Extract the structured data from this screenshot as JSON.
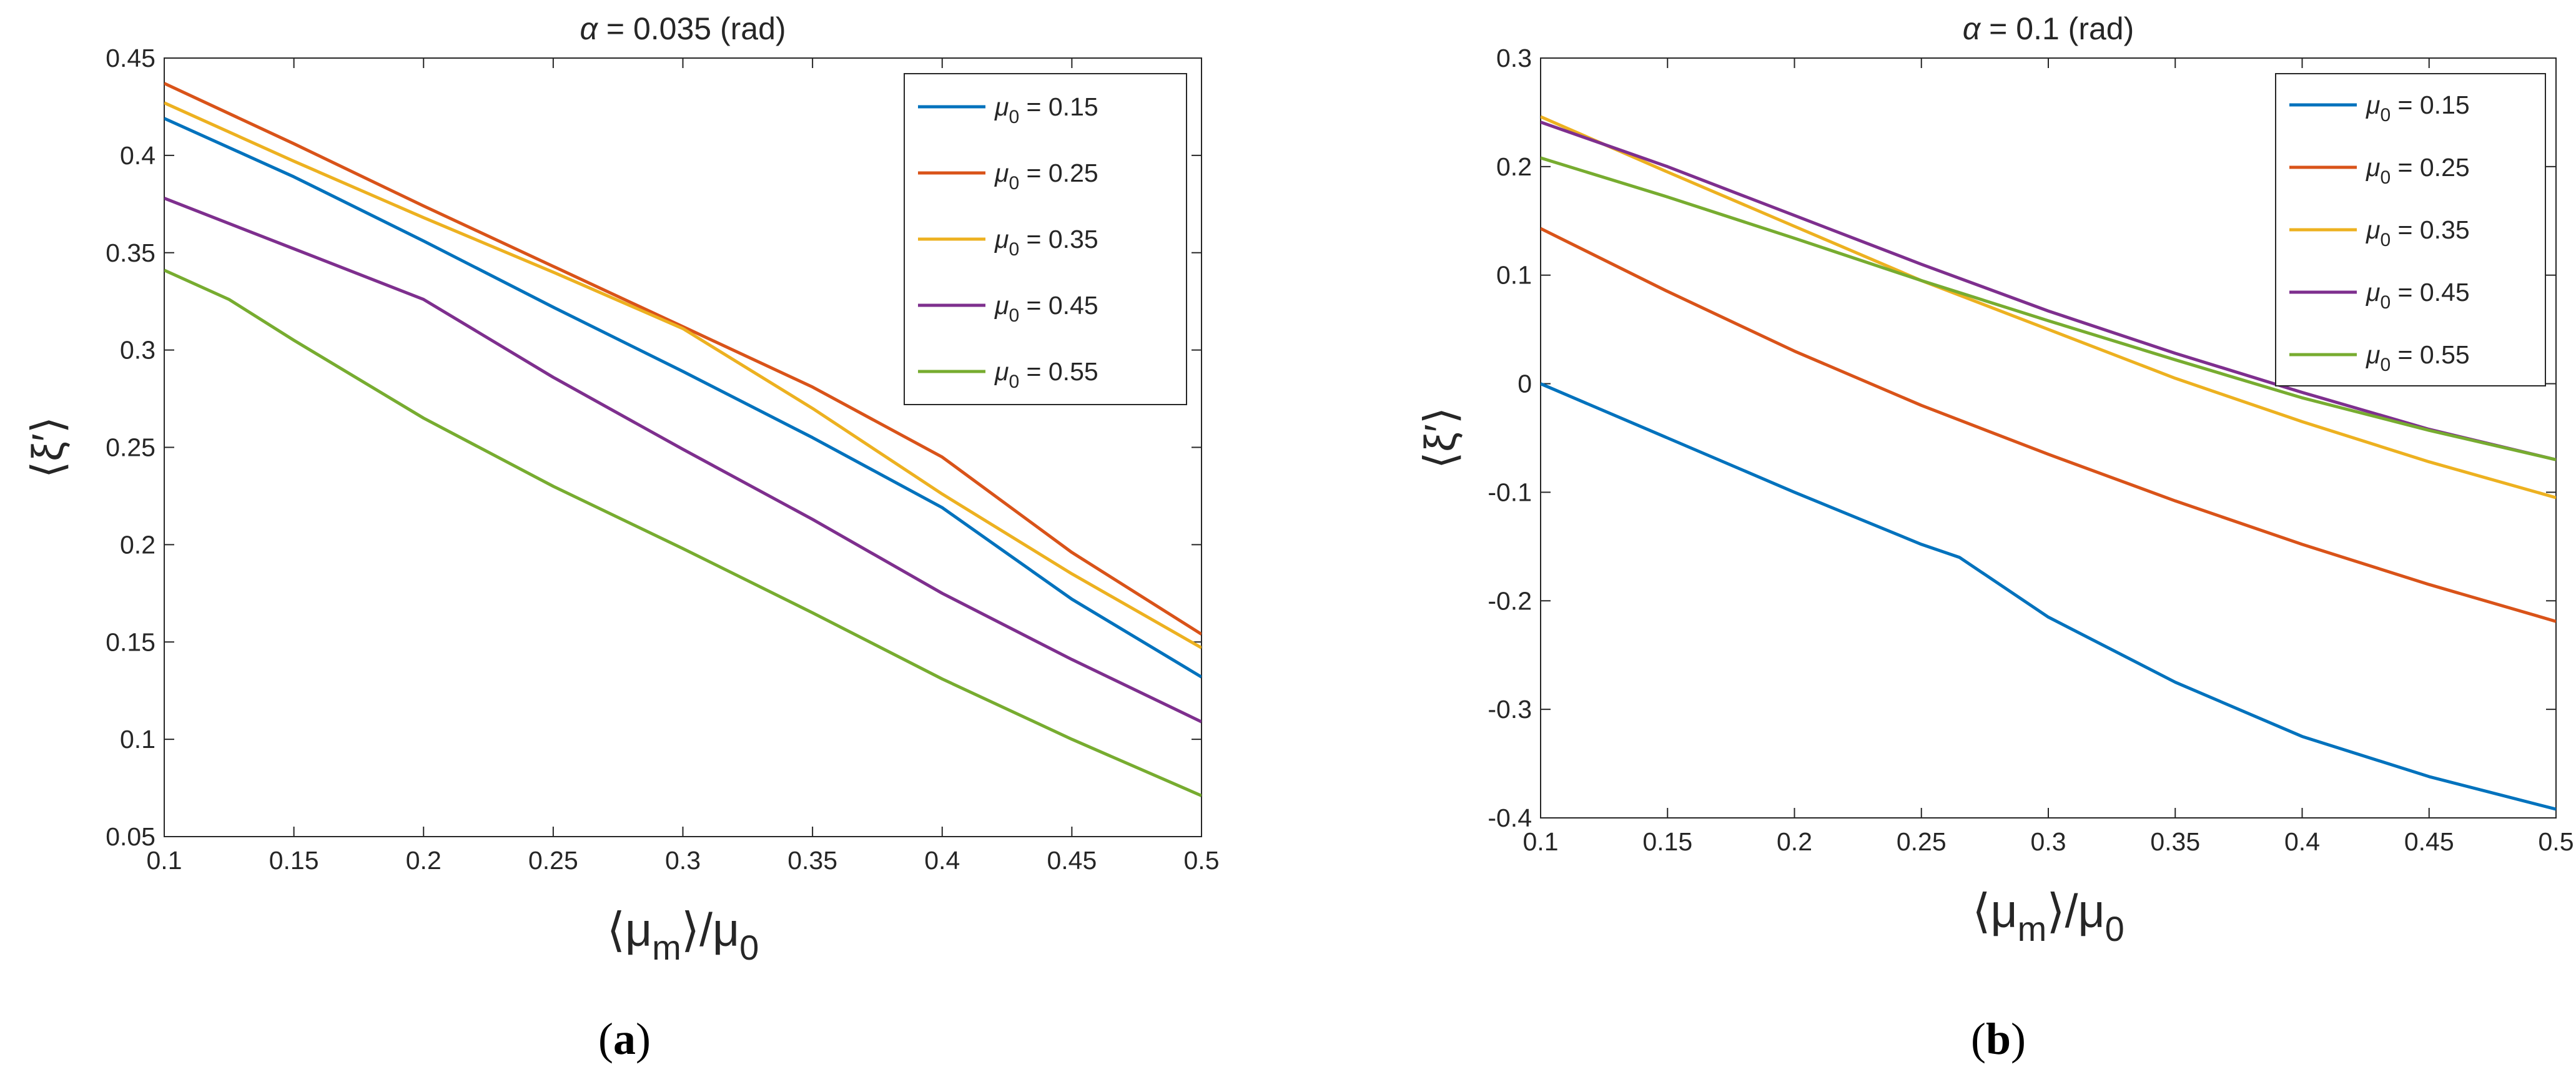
{
  "chart_data": [
    {
      "type": "line",
      "title": "α = 0.035 (rad)",
      "title_symbol": "α",
      "title_text": " = 0.035 (rad)",
      "xlabel": "⟨μm⟩/μ0",
      "xlabel_parts": {
        "open": "⟨",
        "mu": "μ",
        "sub_m": "m",
        "close": "⟩/",
        "mu2": "μ",
        "sub_0": "0"
      },
      "ylabel": "⟨ξ′⟩",
      "xlim": [
        0.1,
        0.5
      ],
      "ylim": [
        0.05,
        0.45
      ],
      "xticks": [
        0.1,
        0.15,
        0.2,
        0.25,
        0.3,
        0.35,
        0.4,
        0.45,
        0.5
      ],
      "xtick_labels": [
        "0.1",
        "0.15",
        "0.2",
        "0.25",
        "0.3",
        "0.35",
        "0.4",
        "0.45",
        "0.5"
      ],
      "yticks": [
        0.05,
        0.1,
        0.15,
        0.2,
        0.25,
        0.3,
        0.35,
        0.4,
        0.45
      ],
      "ytick_labels": [
        "0.05",
        "0.1",
        "0.15",
        "0.2",
        "0.25",
        "0.3",
        "0.35",
        "0.4",
        "0.45"
      ],
      "grid": false,
      "legend_position": "top-right",
      "caption": "(a)",
      "caption_parts": {
        "open": "(",
        "letter": "a",
        "close": ")"
      },
      "series": [
        {
          "name": "μ0 = 0.15",
          "sym": "μ",
          "sub": "0",
          "val": " = 0.15",
          "color": "#0072BD",
          "x": [
            0.1,
            0.15,
            0.2,
            0.25,
            0.3,
            0.35,
            0.4,
            0.45,
            0.5
          ],
          "y": [
            0.419,
            0.389,
            0.356,
            0.322,
            0.289,
            0.255,
            0.219,
            0.172,
            0.132
          ]
        },
        {
          "name": "μ0 = 0.25",
          "sym": "μ",
          "sub": "0",
          "val": " = 0.25",
          "color": "#D95319",
          "x": [
            0.1,
            0.15,
            0.2,
            0.25,
            0.3,
            0.35,
            0.4,
            0.45,
            0.5
          ],
          "y": [
            0.437,
            0.406,
            0.374,
            0.343,
            0.312,
            0.281,
            0.245,
            0.196,
            0.154
          ]
        },
        {
          "name": "μ0 = 0.35",
          "sym": "μ",
          "sub": "0",
          "val": " = 0.35",
          "color": "#EDB120",
          "x": [
            0.1,
            0.15,
            0.2,
            0.25,
            0.3,
            0.35,
            0.4,
            0.45,
            0.5
          ],
          "y": [
            0.427,
            0.397,
            0.368,
            0.34,
            0.311,
            0.27,
            0.226,
            0.185,
            0.147
          ]
        },
        {
          "name": "μ0 = 0.45",
          "sym": "μ",
          "sub": "0",
          "val": " = 0.45",
          "color": "#7E2F8E",
          "x": [
            0.1,
            0.15,
            0.2,
            0.25,
            0.3,
            0.35,
            0.4,
            0.45,
            0.5
          ],
          "y": [
            0.378,
            0.352,
            0.326,
            0.286,
            0.249,
            0.213,
            0.175,
            0.141,
            0.109
          ]
        },
        {
          "name": "μ0 = 0.55",
          "sym": "μ",
          "sub": "0",
          "val": " = 0.55",
          "color": "#77AC30",
          "x": [
            0.1,
            0.125,
            0.15,
            0.2,
            0.25,
            0.3,
            0.35,
            0.4,
            0.45,
            0.5
          ],
          "y": [
            0.341,
            0.326,
            0.305,
            0.265,
            0.23,
            0.198,
            0.165,
            0.131,
            0.1,
            0.071
          ]
        }
      ]
    },
    {
      "type": "line",
      "title": "α = 0.1 (rad)",
      "title_symbol": "α",
      "title_text": " = 0.1 (rad)",
      "xlabel": "⟨μm⟩/μ0",
      "xlabel_parts": {
        "open": "⟨",
        "mu": "μ",
        "sub_m": "m",
        "close": "⟩/",
        "mu2": "μ",
        "sub_0": "0"
      },
      "ylabel": "⟨ξ′⟩",
      "xlim": [
        0.1,
        0.5
      ],
      "ylim": [
        -0.4,
        0.3
      ],
      "xticks": [
        0.1,
        0.15,
        0.2,
        0.25,
        0.3,
        0.35,
        0.4,
        0.45,
        0.5
      ],
      "xtick_labels": [
        "0.1",
        "0.15",
        "0.2",
        "0.25",
        "0.3",
        "0.35",
        "0.4",
        "0.45",
        "0.5"
      ],
      "yticks": [
        -0.4,
        -0.3,
        -0.2,
        -0.1,
        0,
        0.1,
        0.2,
        0.3
      ],
      "ytick_labels": [
        "-0.4",
        "-0.3",
        "-0.2",
        "-0.1",
        "0",
        "0.1",
        "0.2",
        "0.3"
      ],
      "grid": false,
      "legend_position": "top-right",
      "caption": "(b)",
      "caption_parts": {
        "open": "(",
        "letter": "b",
        "close": ")"
      },
      "series": [
        {
          "name": "μ0 = 0.15",
          "sym": "μ",
          "sub": "0",
          "val": " = 0.15",
          "color": "#0072BD",
          "x": [
            0.1,
            0.15,
            0.2,
            0.25,
            0.265,
            0.3,
            0.35,
            0.4,
            0.45,
            0.5
          ],
          "y": [
            0.0,
            -0.05,
            -0.1,
            -0.148,
            -0.16,
            -0.215,
            -0.275,
            -0.325,
            -0.362,
            -0.392
          ]
        },
        {
          "name": "μ0 = 0.25",
          "sym": "μ",
          "sub": "0",
          "val": " = 0.25",
          "color": "#D95319",
          "x": [
            0.1,
            0.15,
            0.2,
            0.25,
            0.3,
            0.35,
            0.4,
            0.45,
            0.5
          ],
          "y": [
            0.143,
            0.085,
            0.03,
            -0.02,
            -0.065,
            -0.108,
            -0.148,
            -0.185,
            -0.219
          ]
        },
        {
          "name": "μ0 = 0.35",
          "sym": "μ",
          "sub": "0",
          "val": " = 0.35",
          "color": "#EDB120",
          "x": [
            0.1,
            0.15,
            0.2,
            0.25,
            0.3,
            0.35,
            0.4,
            0.45,
            0.5
          ],
          "y": [
            0.246,
            0.195,
            0.145,
            0.095,
            0.05,
            0.005,
            -0.035,
            -0.072,
            -0.105
          ]
        },
        {
          "name": "μ0 = 0.45",
          "sym": "μ",
          "sub": "0",
          "val": " = 0.45",
          "color": "#7E2F8E",
          "x": [
            0.1,
            0.15,
            0.2,
            0.25,
            0.3,
            0.35,
            0.4,
            0.45,
            0.5
          ],
          "y": [
            0.241,
            0.2,
            0.155,
            0.11,
            0.067,
            0.028,
            -0.008,
            -0.042,
            -0.07
          ]
        },
        {
          "name": "μ0 = 0.55",
          "sym": "μ",
          "sub": "0",
          "val": " = 0.55",
          "color": "#77AC30",
          "x": [
            0.1,
            0.15,
            0.2,
            0.25,
            0.3,
            0.35,
            0.4,
            0.45,
            0.5
          ],
          "y": [
            0.208,
            0.172,
            0.134,
            0.095,
            0.058,
            0.022,
            -0.013,
            -0.043,
            -0.07
          ]
        }
      ]
    }
  ]
}
